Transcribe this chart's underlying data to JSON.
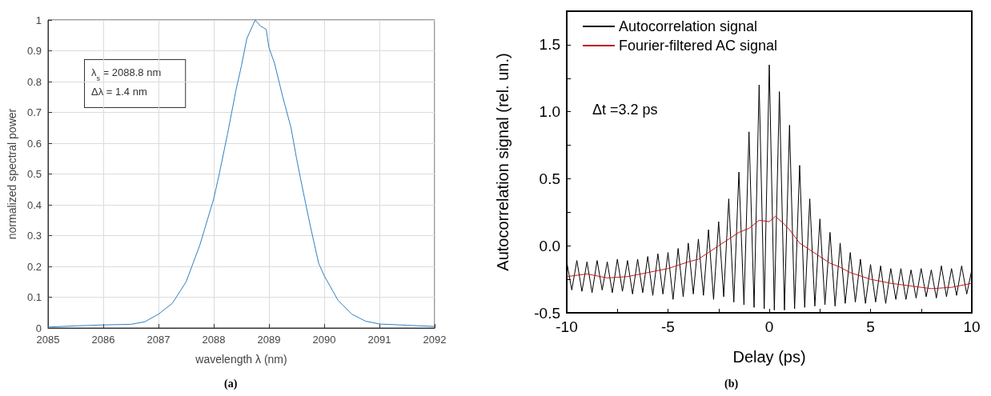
{
  "chart_data": [
    {
      "type": "line",
      "xlabel": "wavelength λ (nm)",
      "ylabel": "normalized spectral power",
      "xlim": [
        2085,
        2092
      ],
      "xticks": [
        2085,
        2086,
        2087,
        2088,
        2089,
        2090,
        2091,
        2092
      ],
      "ylim": [
        0,
        1
      ],
      "yticks": [
        0,
        0.1,
        0.2,
        0.3,
        0.4,
        0.5,
        0.6,
        0.7,
        0.8,
        0.9,
        1
      ],
      "grid": true,
      "legend": false,
      "series": [
        {
          "color": "#2f7fc1",
          "x": [
            2085,
            2085.5,
            2086,
            2086.5,
            2086.75,
            2087,
            2087.25,
            2087.5,
            2087.75,
            2088,
            2088.1,
            2088.25,
            2088.4,
            2088.5,
            2088.6,
            2088.75,
            2088.85,
            2088.95,
            2089,
            2089.1,
            2089.25,
            2089.4,
            2089.5,
            2089.6,
            2089.75,
            2089.9,
            2090,
            2090.25,
            2090.5,
            2090.75,
            2091,
            2091.5,
            2092
          ],
          "values": [
            0.003,
            0.007,
            0.01,
            0.012,
            0.02,
            0.045,
            0.08,
            0.15,
            0.27,
            0.42,
            0.5,
            0.63,
            0.77,
            0.85,
            0.94,
            1.0,
            0.98,
            0.97,
            0.91,
            0.86,
            0.75,
            0.65,
            0.55,
            0.46,
            0.33,
            0.21,
            0.17,
            0.09,
            0.045,
            0.022,
            0.013,
            0.009,
            0.005
          ]
        }
      ],
      "annotations": [
        "λ$_{s}$ = 2088.8 nm",
        "Δλ = 1.4 nm",
        "(a)"
      ]
    },
    {
      "type": "line",
      "xlabel": "Delay (ps)",
      "ylabel": "Autocorrelation signal (rel. un.)",
      "xlim": [
        -10,
        10
      ],
      "xticks": [
        -10,
        {
          "value": -7.5,
          "label": null
        },
        -5,
        {
          "value": -2.5,
          "label": null
        },
        0,
        {
          "value": 2.5,
          "label": null
        },
        5,
        {
          "value": 7.5,
          "label": null
        },
        10
      ],
      "ylim": [
        -0.5,
        1.75
      ],
      "yticks": [
        {
          "value": -0.5,
          "label": "-0.5"
        },
        {
          "value": -0.25,
          "label": null
        },
        {
          "value": 0,
          "label": "0.0"
        },
        {
          "value": 0.25,
          "label": null
        },
        {
          "value": 0.5,
          "label": "0.5"
        },
        {
          "value": 0.75,
          "label": null
        },
        {
          "value": 1,
          "label": "1.0"
        },
        {
          "value": 1.25,
          "label": null
        },
        {
          "value": 1.5,
          "label": "1.5"
        }
      ],
      "grid": false,
      "legend": "top left",
      "series": [
        {
          "name": "Autocorrelation signal",
          "color": "#000000",
          "x": [
            -10,
            -9.75,
            -9.5,
            -9.25,
            -9,
            -8.75,
            -8.5,
            -8.25,
            -8,
            -7.75,
            -7.5,
            -7.25,
            -7,
            -6.75,
            -6.5,
            -6.25,
            -6,
            -5.75,
            -5.5,
            -5.25,
            -5,
            -4.75,
            -4.5,
            -4.25,
            -4,
            -3.75,
            -3.5,
            -3.25,
            -3,
            -2.75,
            -2.5,
            -2.25,
            -2,
            -1.75,
            -1.5,
            -1.25,
            -1,
            -0.75,
            -0.5,
            -0.25,
            0,
            0.25,
            0.5,
            0.75,
            1,
            1.25,
            1.5,
            1.75,
            2,
            2.25,
            2.5,
            2.75,
            3,
            3.25,
            3.5,
            3.75,
            4,
            4.25,
            4.5,
            4.75,
            5,
            5.25,
            5.5,
            5.75,
            6,
            6.25,
            6.5,
            6.75,
            7,
            7.25,
            7.5,
            7.75,
            8,
            8.25,
            8.5,
            8.75,
            9,
            9.25,
            9.5,
            9.75,
            10
          ],
          "values": [
            -0.12,
            -0.33,
            -0.11,
            -0.34,
            -0.12,
            -0.35,
            -0.11,
            -0.33,
            -0.12,
            -0.35,
            -0.1,
            -0.34,
            -0.11,
            -0.36,
            -0.1,
            -0.35,
            -0.08,
            -0.37,
            -0.06,
            -0.36,
            -0.05,
            -0.4,
            -0.02,
            -0.38,
            0.02,
            -0.36,
            0.05,
            -0.37,
            0.12,
            -0.4,
            0.18,
            -0.38,
            0.35,
            -0.42,
            0.55,
            -0.44,
            0.85,
            -0.46,
            1.2,
            -0.47,
            1.35,
            -0.48,
            1.15,
            -0.48,
            0.9,
            -0.47,
            0.6,
            -0.46,
            0.35,
            -0.45,
            0.2,
            -0.44,
            0.1,
            -0.45,
            0.02,
            -0.43,
            -0.05,
            -0.42,
            -0.1,
            -0.43,
            -0.14,
            -0.42,
            -0.15,
            -0.43,
            -0.17,
            -0.4,
            -0.17,
            -0.4,
            -0.18,
            -0.39,
            -0.17,
            -0.38,
            -0.18,
            -0.39,
            -0.15,
            -0.38,
            -0.17,
            -0.37,
            -0.15,
            -0.36,
            -0.18
          ]
        },
        {
          "name": "Fourier-filtered AC signal",
          "color": "#c0161b",
          "x": [
            -10,
            -9,
            -8,
            -7,
            -6,
            -5,
            -4,
            -3.5,
            -3,
            -2.5,
            -2,
            -1.5,
            -1,
            -0.5,
            0,
            0.3,
            0.75,
            1,
            1.5,
            2,
            2.5,
            3,
            3.5,
            4,
            5,
            6,
            7,
            8,
            9,
            10
          ],
          "values": [
            -0.23,
            -0.21,
            -0.24,
            -0.23,
            -0.2,
            -0.17,
            -0.12,
            -0.1,
            -0.05,
            0.0,
            0.05,
            0.1,
            0.13,
            0.19,
            0.18,
            0.22,
            0.16,
            0.12,
            0.02,
            -0.03,
            -0.08,
            -0.13,
            -0.16,
            -0.2,
            -0.25,
            -0.28,
            -0.3,
            -0.32,
            -0.31,
            -0.28
          ]
        }
      ],
      "annotations": [
        "Δt =3.2 ps",
        "(b)"
      ]
    }
  ]
}
